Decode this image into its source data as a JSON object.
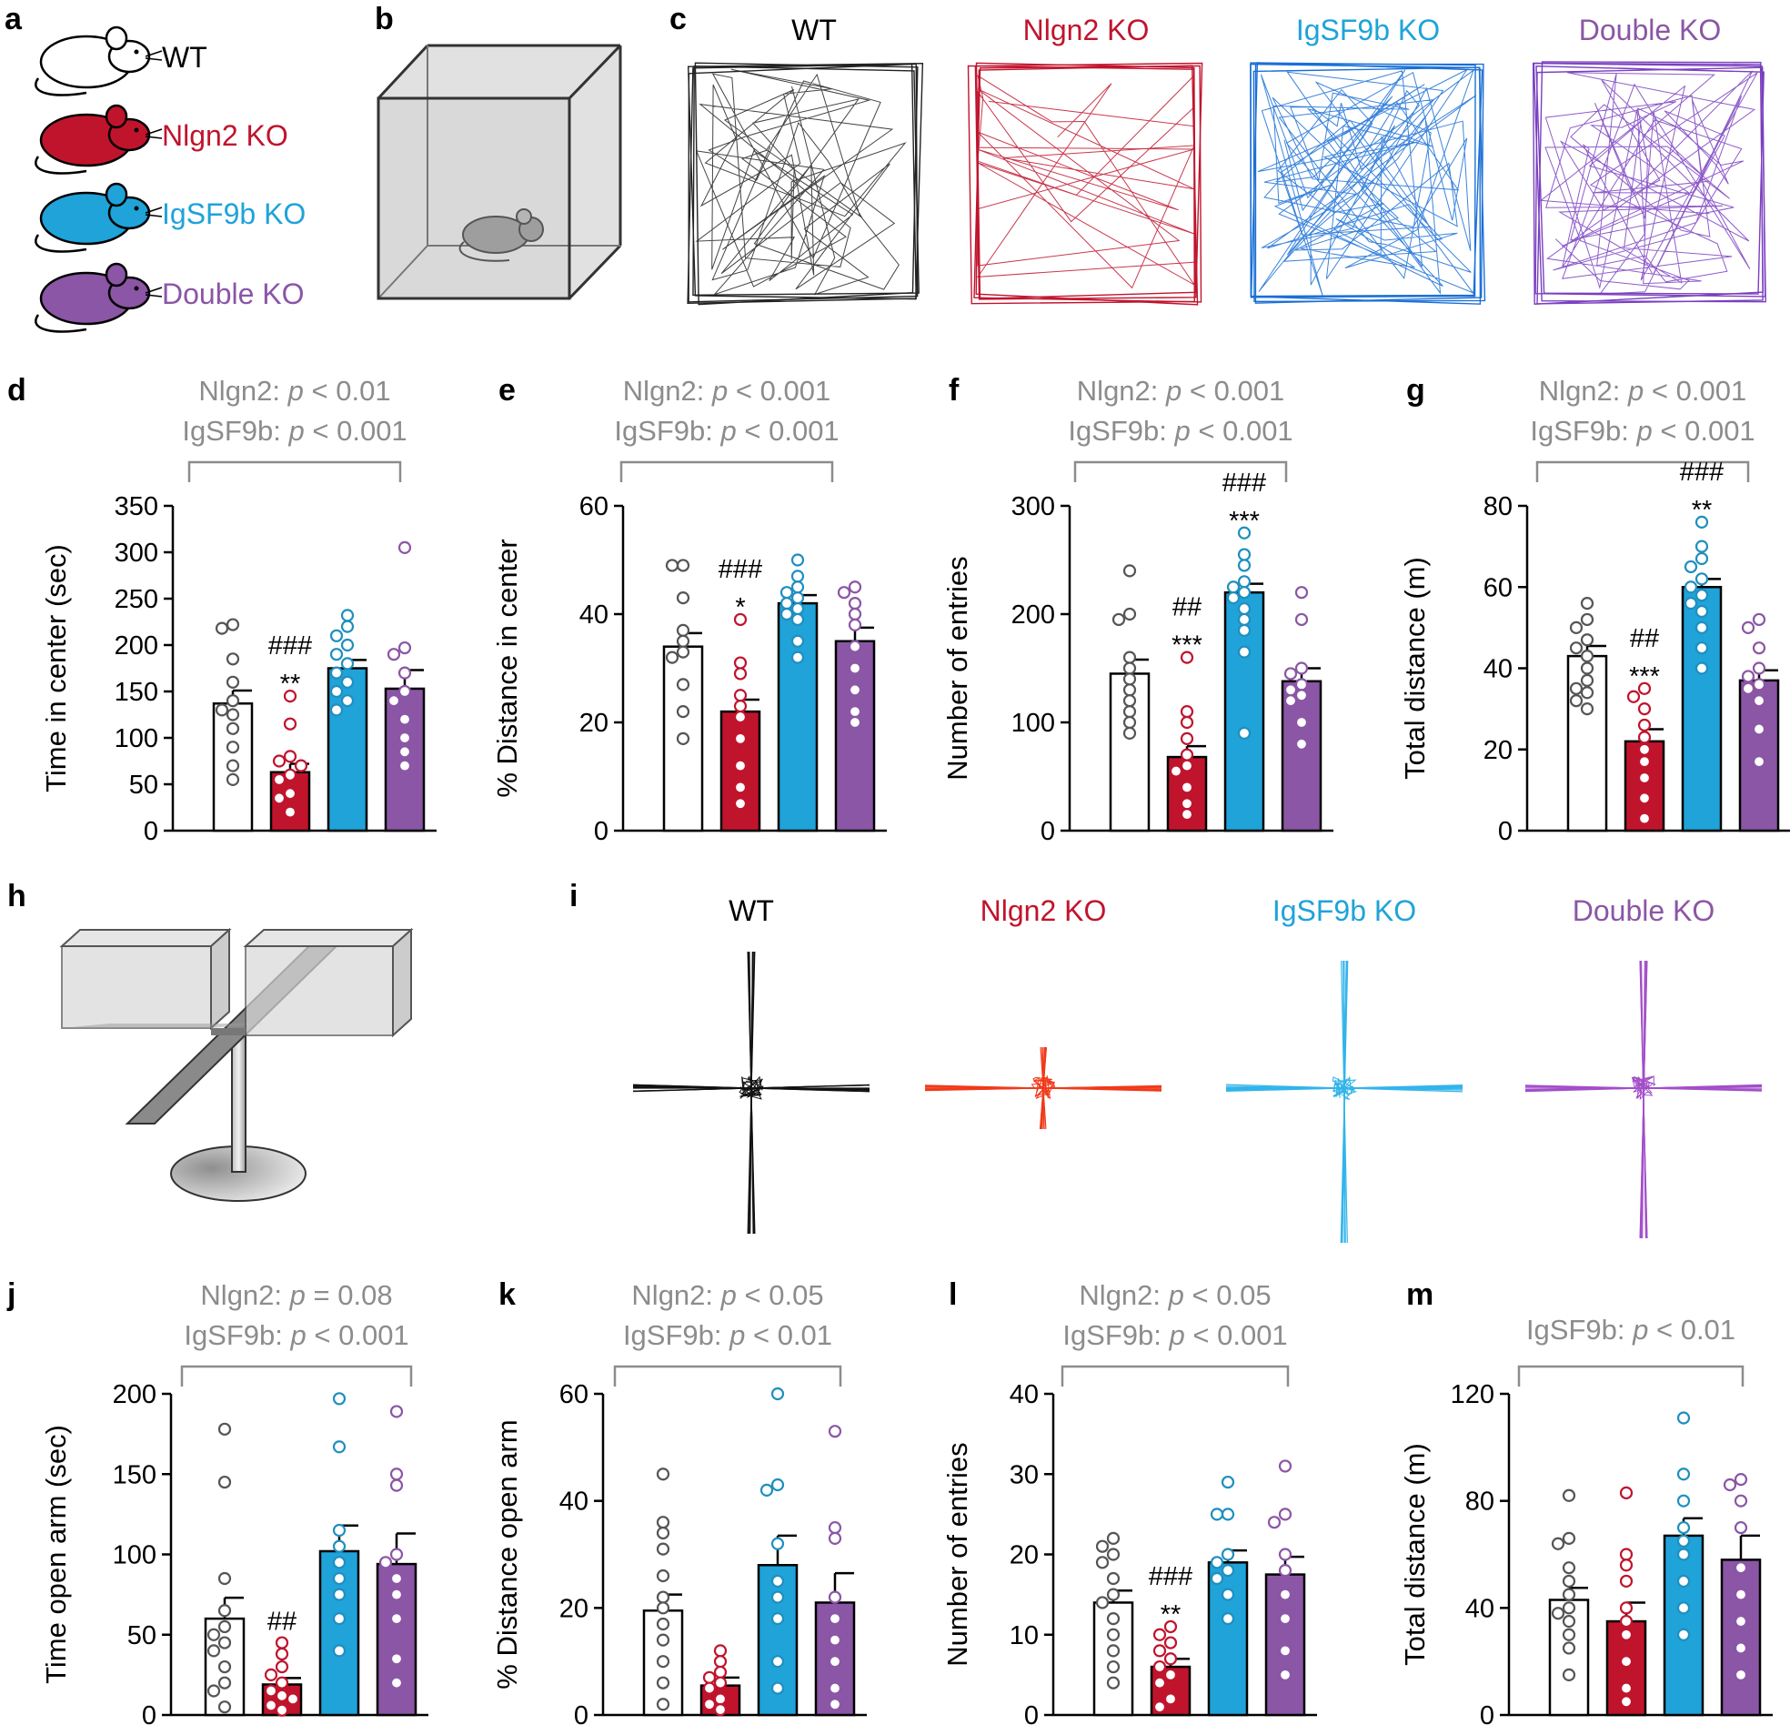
{
  "colors": {
    "WT": "#ffffff",
    "Nlgn2": "#c0142d",
    "IgSF9b": "#1fa3d9",
    "Double": "#8b56a5",
    "WT_dot": "#555555",
    "Nlgn2_dot": "#c0142d",
    "IgSF9b_dot": "#1f8fbf",
    "Double_dot": "#8b56a5",
    "stat_text": "#8c8c8c"
  },
  "panels": {
    "a": "a",
    "b": "b",
    "c": "c",
    "h": "h",
    "i": "i"
  },
  "legend": [
    {
      "label": "WT",
      "color": "#000000"
    },
    {
      "label": "Nlgn2 KO",
      "color": "#c0142d"
    },
    {
      "label": "IgSF9b KO",
      "color": "#1fa3d9"
    },
    {
      "label": "Double KO",
      "color": "#8b56a5"
    }
  ],
  "track_titles": [
    "WT",
    "Nlgn2 KO",
    "IgSF9b KO",
    "Double KO"
  ],
  "maze_titles": [
    "WT",
    "Nlgn2 KO",
    "IgSF9b KO",
    "Double KO"
  ],
  "chart_data": [
    {
      "id": "d",
      "type": "bar",
      "ylabel": "Time in center (sec)",
      "ylim": [
        0,
        350
      ],
      "yticks": [
        0,
        50,
        100,
        150,
        200,
        250,
        300,
        350
      ],
      "categories": [
        "WT",
        "Nlgn2 KO",
        "IgSF9b KO",
        "Double KO"
      ],
      "values": [
        137,
        63,
        175,
        153
      ],
      "sem": [
        14,
        9,
        9,
        20
      ],
      "points": [
        [
          222,
          218,
          185,
          160,
          140,
          130,
          125,
          110,
          90,
          70,
          55
        ],
        [
          145,
          115,
          80,
          75,
          70,
          60,
          55,
          40,
          35,
          20
        ],
        [
          232,
          220,
          210,
          200,
          190,
          180,
          170,
          160,
          150,
          140,
          130
        ],
        [
          305,
          197,
          190,
          170,
          150,
          140,
          120,
          100,
          85,
          70
        ]
      ],
      "significance": [
        "",
        "###\n**",
        "",
        ""
      ],
      "stats": [
        "Nlgn2: p < 0.01",
        "IgSF9b: p < 0.001"
      ]
    },
    {
      "id": "e",
      "type": "bar",
      "ylabel": "% Distance in center",
      "ylim": [
        0,
        60
      ],
      "yticks": [
        0,
        20,
        40,
        60
      ],
      "categories": [
        "WT",
        "Nlgn2 KO",
        "IgSF9b KO",
        "Double KO"
      ],
      "values": [
        34,
        22,
        42,
        35
      ],
      "sem": [
        2.5,
        2.2,
        1.5,
        2.5
      ],
      "points": [
        [
          49,
          49,
          43,
          37,
          35,
          33,
          32,
          27,
          22,
          17
        ],
        [
          39,
          31,
          29,
          25,
          23,
          21,
          17,
          12,
          8,
          5
        ],
        [
          50,
          47,
          45,
          44,
          43,
          42,
          41,
          40,
          39,
          35,
          32
        ],
        [
          45,
          44,
          42,
          40,
          38,
          34,
          30,
          26,
          22,
          20
        ]
      ],
      "significance": [
        "",
        "###\n*",
        "",
        ""
      ],
      "stats": [
        "Nlgn2: p < 0.001",
        "IgSF9b: p < 0.001"
      ]
    },
    {
      "id": "f",
      "type": "bar",
      "ylabel": "Number of entries",
      "ylim": [
        0,
        300
      ],
      "yticks": [
        0,
        100,
        200,
        300
      ],
      "categories": [
        "WT",
        "Nlgn2 KO",
        "IgSF9b KO",
        "Double KO"
      ],
      "values": [
        145,
        68,
        220,
        138
      ],
      "sem": [
        13,
        10,
        8,
        12
      ],
      "points": [
        [
          240,
          200,
          195,
          160,
          150,
          140,
          130,
          120,
          110,
          100,
          90
        ],
        [
          160,
          110,
          100,
          85,
          70,
          60,
          55,
          40,
          25,
          15
        ],
        [
          275,
          255,
          245,
          230,
          225,
          220,
          215,
          205,
          195,
          185,
          165,
          90
        ],
        [
          220,
          195,
          150,
          145,
          135,
          130,
          125,
          120,
          100,
          80
        ]
      ],
      "significance": [
        "",
        "##\n***",
        "###\n***",
        ""
      ],
      "stats": [
        "Nlgn2: p < 0.001",
        "IgSF9b: p < 0.001"
      ]
    },
    {
      "id": "g",
      "type": "bar",
      "ylabel": "Total distance (m)",
      "ylim": [
        0,
        80
      ],
      "yticks": [
        0,
        20,
        40,
        60,
        80
      ],
      "categories": [
        "WT",
        "Nlgn2 KO",
        "IgSF9b KO",
        "Double KO"
      ],
      "values": [
        43,
        22,
        60,
        37
      ],
      "sem": [
        2.5,
        3,
        2,
        2.5
      ],
      "points": [
        [
          56,
          52,
          50,
          47,
          45,
          43,
          40,
          37,
          35,
          34,
          32,
          30
        ],
        [
          35,
          33,
          30,
          26,
          23,
          20,
          17,
          13,
          8,
          3
        ],
        [
          76,
          70,
          67,
          65,
          62,
          60,
          58,
          56,
          54,
          50,
          45,
          40
        ],
        [
          52,
          50,
          45,
          40,
          38,
          36,
          35,
          32,
          25,
          17
        ]
      ],
      "significance": [
        "",
        "##\n***",
        "###\n**",
        ""
      ],
      "stats": [
        "Nlgn2: p < 0.001",
        "IgSF9b: p < 0.001"
      ]
    },
    {
      "id": "j",
      "type": "bar",
      "ylabel": "Time open arm (sec)",
      "ylim": [
        0,
        200
      ],
      "yticks": [
        0,
        50,
        100,
        150,
        200
      ],
      "categories": [
        "WT",
        "Nlgn2 KO",
        "IgSF9b KO",
        "Double KO"
      ],
      "values": [
        60,
        19,
        102,
        94
      ],
      "sem": [
        13,
        4,
        16,
        19
      ],
      "points": [
        [
          178,
          145,
          85,
          65,
          55,
          50,
          45,
          40,
          30,
          20,
          15,
          5
        ],
        [
          45,
          38,
          30,
          25,
          20,
          15,
          12,
          10,
          6,
          3
        ],
        [
          197,
          167,
          115,
          105,
          95,
          85,
          75,
          60,
          40
        ],
        [
          189,
          150,
          143,
          100,
          95,
          85,
          75,
          60,
          35,
          20
        ]
      ],
      "significance": [
        "",
        "##",
        "",
        ""
      ],
      "stats": [
        "Nlgn2: p = 0.08",
        "IgSF9b: p < 0.001"
      ]
    },
    {
      "id": "k",
      "type": "bar",
      "ylabel": "% Distance open arm",
      "ylim": [
        0,
        60
      ],
      "yticks": [
        0,
        20,
        40,
        60
      ],
      "categories": [
        "WT",
        "Nlgn2 KO",
        "IgSF9b KO",
        "Double KO"
      ],
      "values": [
        19.5,
        5.5,
        28,
        21
      ],
      "sem": [
        3,
        1.5,
        5.5,
        5.5
      ],
      "points": [
        [
          45,
          36,
          34,
          31,
          26,
          22,
          20,
          17,
          14,
          10,
          6,
          2
        ],
        [
          12,
          10,
          8,
          7,
          6,
          5,
          3,
          2,
          1
        ],
        [
          60,
          43,
          42,
          32,
          25,
          22,
          18,
          10,
          5
        ],
        [
          53,
          35,
          33,
          22,
          18,
          14,
          10,
          5,
          2
        ]
      ],
      "significance": [
        "",
        "",
        "",
        ""
      ],
      "stats": [
        "Nlgn2: p < 0.05",
        "IgSF9b: p < 0.01"
      ]
    },
    {
      "id": "l",
      "type": "bar",
      "ylabel": "Number of entries",
      "ylim": [
        0,
        40
      ],
      "yticks": [
        0,
        10,
        20,
        30,
        40
      ],
      "categories": [
        "WT",
        "Nlgn2 KO",
        "IgSF9b KO",
        "Double KO"
      ],
      "values": [
        14,
        6,
        19,
        17.5
      ],
      "sem": [
        1.5,
        1,
        1.5,
        2.2
      ],
      "points": [
        [
          22,
          21,
          20,
          19,
          17,
          15,
          14,
          12,
          10,
          8,
          6,
          4
        ],
        [
          11,
          10,
          9,
          8,
          7,
          6,
          5,
          4,
          2,
          1
        ],
        [
          29,
          25,
          25,
          20,
          19,
          18,
          17,
          15,
          12
        ],
        [
          31,
          25,
          24,
          20,
          18,
          15,
          12,
          8,
          5
        ]
      ],
      "significance": [
        "",
        "###\n**",
        "",
        ""
      ],
      "stats": [
        "Nlgn2: p < 0.05",
        "IgSF9b: p < 0.001"
      ]
    },
    {
      "id": "m",
      "type": "bar",
      "ylabel": "Total distance (m)",
      "ylim": [
        0,
        120
      ],
      "yticks": [
        0,
        40,
        80,
        120
      ],
      "categories": [
        "WT",
        "Nlgn2 KO",
        "IgSF9b KO",
        "Double KO"
      ],
      "values": [
        43,
        35,
        67,
        58
      ],
      "sem": [
        4.5,
        7,
        6.5,
        9
      ],
      "points": [
        [
          82,
          66,
          64,
          55,
          50,
          45,
          40,
          38,
          35,
          30,
          25,
          15
        ],
        [
          83,
          60,
          56,
          50,
          40,
          35,
          30,
          20,
          10,
          5
        ],
        [
          111,
          90,
          80,
          70,
          65,
          60,
          50,
          40,
          30
        ],
        [
          88,
          86,
          80,
          70,
          55,
          45,
          35,
          25,
          15
        ]
      ],
      "significance": [
        "",
        "",
        "",
        ""
      ],
      "stats": [
        "IgSF9b: p < 0.01"
      ]
    }
  ]
}
